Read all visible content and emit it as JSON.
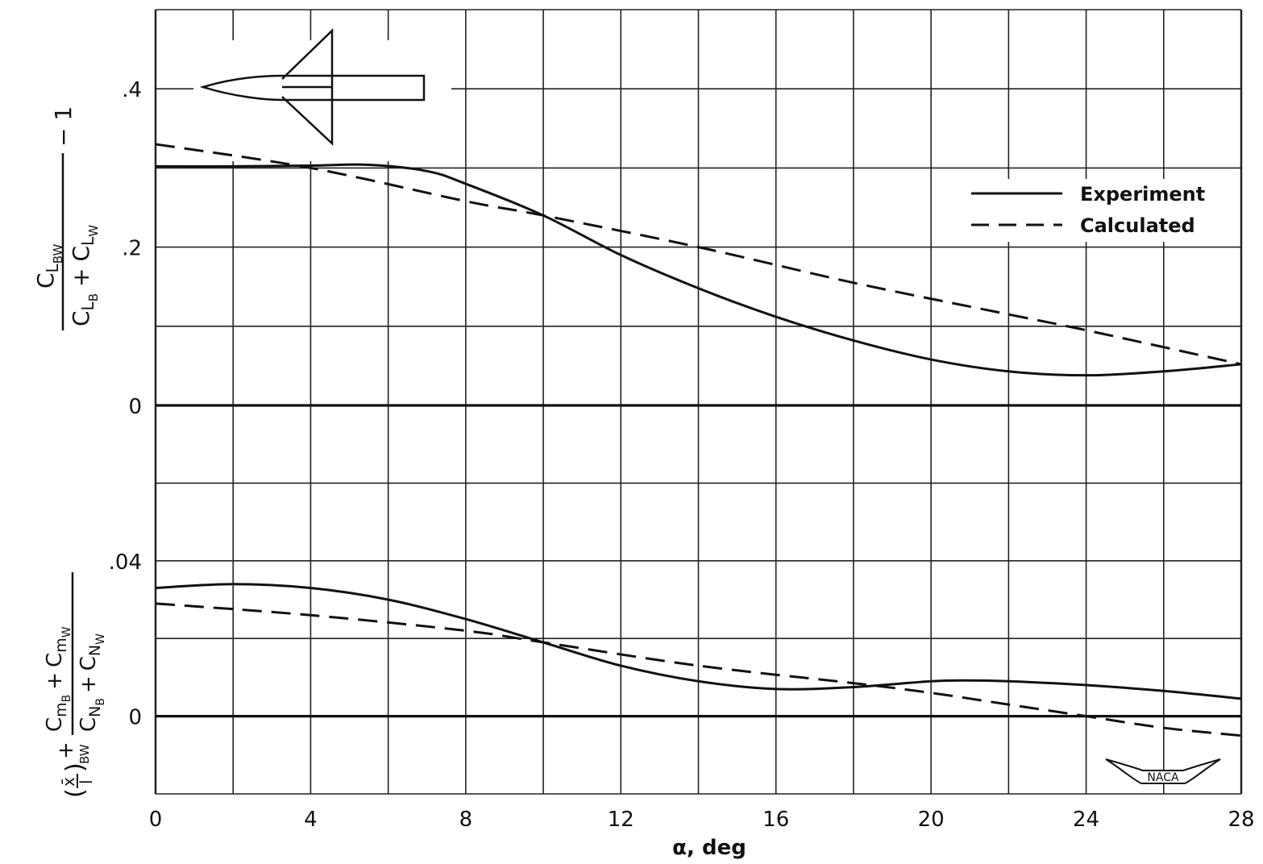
{
  "chart_data": {
    "type": "line",
    "xlabel": "α, deg",
    "x_ticks": [
      "0",
      "4",
      "8",
      "12",
      "16",
      "20",
      "24",
      "28"
    ],
    "xlim": [
      0,
      28
    ],
    "grid": true,
    "legend": {
      "position": "top-right",
      "entries": [
        {
          "label": "Experiment",
          "style": "solid"
        },
        {
          "label": "Calculated",
          "style": "dashed"
        }
      ]
    },
    "panels": [
      {
        "id": "lift",
        "ylabel_parts": {
          "num_main": "C",
          "num_sub": "L",
          "num_subsub": "BW",
          "den_a": "C",
          "den_a_sub": "L",
          "den_a_subsub": "B",
          "plus": "+",
          "den_b": "C",
          "den_b_sub": "L",
          "den_b_subsub": "W",
          "minus1": "− 1"
        },
        "y_ticks": [
          {
            "value": 0.4,
            "label": ".4"
          },
          {
            "value": 0.2,
            "label": ".2"
          },
          {
            "value": 0,
            "label": "0"
          }
        ],
        "ylim": [
          0,
          0.5
        ],
        "series": [
          {
            "name": "Experiment",
            "style": "solid",
            "x": [
              0,
              2,
              4,
              5.5,
              7,
              8,
              10,
              12,
              14,
              16,
              18,
              20,
              22,
              24,
              26,
              28
            ],
            "y": [
              0.302,
              0.302,
              0.303,
              0.304,
              0.296,
              0.28,
              0.24,
              0.19,
              0.148,
              0.112,
              0.082,
              0.058,
              0.043,
              0.038,
              0.043,
              0.052
            ]
          },
          {
            "name": "Calculated",
            "style": "dashed",
            "x": [
              0,
              4,
              8,
              10,
              14,
              18,
              22,
              24,
              28
            ],
            "y": [
              0.33,
              0.3,
              0.258,
              0.24,
              0.2,
              0.155,
              0.115,
              0.095,
              0.052
            ]
          }
        ]
      },
      {
        "id": "moment",
        "ylabel_parts": {
          "paren_x": "x̄",
          "paren_l": "l",
          "paren_sub": "BW",
          "plus": "+",
          "num_a": "C",
          "num_a_sub": "m",
          "num_a_subsub": "B",
          "num_b": "C",
          "num_b_sub": "m",
          "num_b_subsub": "W",
          "den_a": "C",
          "den_a_sub": "N",
          "den_a_subsub": "B",
          "den_b": "C",
          "den_b_sub": "N",
          "den_b_subsub": "W"
        },
        "y_ticks": [
          {
            "value": 0.04,
            "label": ".04"
          },
          {
            "value": 0,
            "label": "0"
          }
        ],
        "ylim": [
          -0.02,
          0.08
        ],
        "series": [
          {
            "name": "Experiment",
            "style": "solid",
            "x": [
              0,
              2,
              4,
              6,
              8,
              10,
              12,
              14,
              16,
              18,
              20,
              21,
              22,
              24,
              26,
              28
            ],
            "y": [
              0.033,
              0.034,
              0.033,
              0.03,
              0.025,
              0.019,
              0.013,
              0.009,
              0.007,
              0.0075,
              0.009,
              0.0092,
              0.009,
              0.008,
              0.0065,
              0.0045
            ]
          },
          {
            "name": "Calculated",
            "style": "dashed",
            "x": [
              0,
              4,
              8,
              10,
              14,
              18,
              20,
              22,
              24,
              26,
              28
            ],
            "y": [
              0.029,
              0.026,
              0.022,
              0.019,
              0.013,
              0.0085,
              0.006,
              0.003,
              0.0,
              -0.003,
              -0.005
            ]
          }
        ]
      }
    ]
  },
  "logo": {
    "text": "NACA"
  }
}
